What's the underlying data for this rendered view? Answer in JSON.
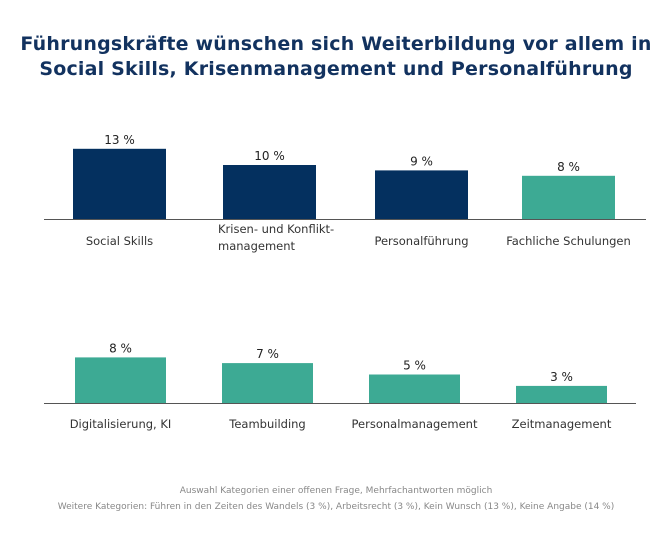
{
  "chart_data": [
    {
      "type": "bar",
      "categories": [
        "Social Skills",
        "Krisen- und Konflikt-\nmanagement",
        "Personalführung",
        "Fachliche Schulungen"
      ],
      "values": [
        13,
        10,
        9,
        8
      ],
      "labels": [
        "13 %",
        "10 %",
        "9 %",
        "8 %"
      ],
      "colors": [
        "#04305f",
        "#04305f",
        "#04305f",
        "#3daa94"
      ],
      "ylim": [
        0,
        13
      ]
    },
    {
      "type": "bar",
      "categories": [
        "Digitalisierung, KI",
        "Teambuilding",
        "Personalmanagement",
        "Zeitmanagement"
      ],
      "values": [
        8,
        7,
        5,
        3
      ],
      "labels": [
        "8 %",
        "7 %",
        "5 %",
        "3 %"
      ],
      "colors": [
        "#3daa94",
        "#3daa94",
        "#3daa94",
        "#3daa94"
      ],
      "ylim": [
        0,
        13
      ]
    }
  ],
  "title": "Führungskräfte wünschen sich Weiterbildung vor allem in Social Skills, Krisenmanagement und Personalführung",
  "notes": [
    "Auswahl Kategorien einer offenen Frage, Mehrfachantworten möglich",
    "Weitere Kategorien: Führen in den Zeiten des Wandels (3 %), Arbeitsrecht (3 %), Kein Wunsch (13 %), Keine Angabe (14 %)"
  ]
}
